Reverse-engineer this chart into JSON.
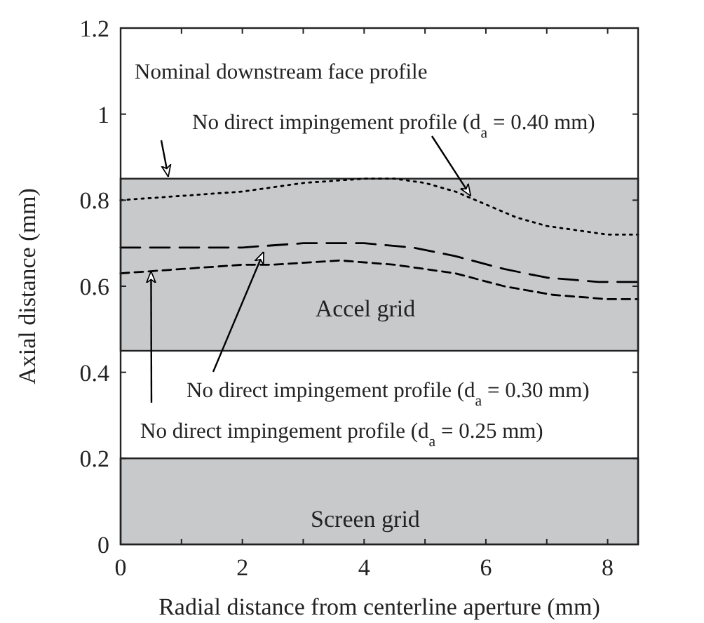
{
  "chart_data": {
    "type": "line",
    "xlabel": "Radial distance from centerline aperture (mm)",
    "ylabel": "Axial distance (mm)",
    "xlim": [
      0,
      8.5
    ],
    "xticks": [
      0,
      {
        "value": 1,
        "label": null
      },
      2,
      {
        "value": 3,
        "label": null
      },
      4,
      {
        "value": 5,
        "label": null
      },
      6,
      {
        "value": 7,
        "label": null
      },
      8
    ],
    "ylim": [
      0,
      1.2
    ],
    "yticks": [
      0,
      0.2,
      0.4,
      0.6,
      0.8,
      1,
      1.2
    ],
    "grid": false,
    "marker": "none",
    "bands": [
      {
        "axis": "y",
        "from": 0,
        "to": 0.2,
        "label": "Screen grid",
        "color": "#c8c9cb"
      },
      {
        "axis": "y",
        "from": 0.45,
        "to": 0.85,
        "label": "Accel grid",
        "color": "#c8c9cb"
      }
    ],
    "series": [
      {
        "color": "#000000",
        "line_style": "dotted",
        "x": [
          0,
          1,
          2,
          3,
          4,
          4.5,
          5,
          5.5,
          6,
          6.5,
          7,
          7.5,
          8,
          8.5
        ],
        "values": [
          0.8,
          0.81,
          0.82,
          0.84,
          0.85,
          0.85,
          0.84,
          0.82,
          0.79,
          0.76,
          0.74,
          0.73,
          0.72,
          0.72
        ]
      },
      {
        "color": "#000000",
        "line_style": "dashed",
        "x": [
          0,
          1,
          2,
          3,
          4,
          4.8,
          5.5,
          6.3,
          7,
          7.85,
          8.5
        ],
        "values": [
          0.69,
          0.69,
          0.69,
          0.7,
          0.7,
          0.69,
          0.67,
          0.64,
          0.62,
          0.61,
          0.61
        ]
      },
      {
        "color": "#000000",
        "line_style": "dashed",
        "x": [
          0,
          1,
          2,
          2.5,
          3.6,
          4.5,
          5.5,
          6.3,
          7.1,
          8,
          8.5
        ],
        "values": [
          0.63,
          0.64,
          0.65,
          0.65,
          0.66,
          0.65,
          0.63,
          0.6,
          0.58,
          0.57,
          0.57
        ]
      }
    ],
    "annotations": [
      "Nominal downstream face profile",
      {
        "text": "No direct impingement profile (d$_{a}$ = 0.40 mm)",
        "x": 5.75,
        "y": 0.81
      },
      {
        "text": "No direct impingement profile (d$_{a}$ = 0.30 mm)",
        "x": 2.35,
        "y": 0.68
      },
      {
        "text": "No direct impingement profile (d$_{a}$ = 0.25 mm)",
        "x": 0.5,
        "y": 0.635
      }
    ]
  }
}
